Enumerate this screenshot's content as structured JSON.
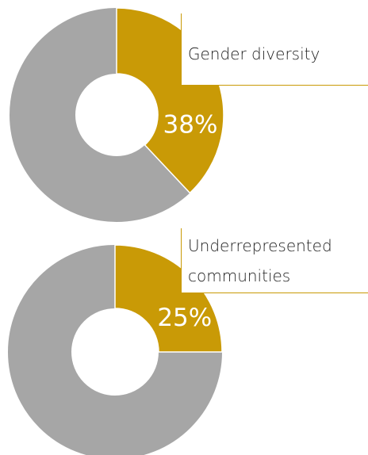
{
  "chart_data": [
    {
      "type": "pie",
      "label": "Gender diversity",
      "values": [
        38
      ],
      "value_labels": [
        "38%"
      ],
      "color": "#c99a06",
      "rest_color": "#a6a6a6"
    },
    {
      "type": "pie",
      "label": "Underrepresented communities",
      "values": [
        25
      ],
      "value_labels": [
        "25%"
      ],
      "color": "#c99a06",
      "rest_color": "#a6a6a6"
    }
  ]
}
